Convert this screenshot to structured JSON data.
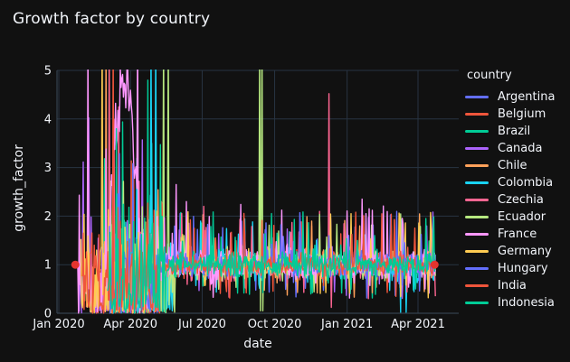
{
  "theme": {
    "background": "#111111",
    "text": "#f2f5fa",
    "grid": "#283442",
    "axis_line": "#3b4a5a",
    "marker_red": "#e3342e"
  },
  "chart_data": {
    "type": "line",
    "title": "Growth factor by country",
    "xlabel": "date",
    "ylabel": "growth_factor",
    "legend_title": "country",
    "legend_position": "right",
    "grid": true,
    "baseline": 1.0,
    "ylim": [
      0,
      5
    ],
    "y_ticks": [
      0,
      1,
      2,
      3,
      4,
      5
    ],
    "x_epoch": "2020-01-01",
    "x_tick_days": [
      0,
      91,
      182,
      274,
      366,
      456
    ],
    "x_tick_labels": [
      "Jan 2020",
      "Apr 2020",
      "Jul 2020",
      "Oct 2020",
      "Jan 2021",
      "Apr 2021"
    ],
    "end_day": 478,
    "markers": [
      {
        "day": 21,
        "value": 1.0
      },
      {
        "day": 477,
        "value": 1.0
      }
    ],
    "series": [
      {
        "name": "Argentina",
        "color": "#636efa",
        "start": 63,
        "wild_end": 130,
        "amp": 0.12,
        "seed": 11,
        "events": []
      },
      {
        "name": "Belgium",
        "color": "#ef553b",
        "start": 35,
        "wild_end": 125,
        "amp": 0.12,
        "seed": 22,
        "events": []
      },
      {
        "name": "Brazil",
        "color": "#00cc96",
        "start": 57,
        "wild_end": 135,
        "amp": 0.12,
        "seed": 33,
        "events": [
          [
            113,
            4.8
          ]
        ]
      },
      {
        "name": "Canada",
        "color": "#ab63fa",
        "start": 26,
        "wild_end": 120,
        "amp": 0.12,
        "seed": 44,
        "events": []
      },
      {
        "name": "Chile",
        "color": "#ffa15a",
        "start": 58,
        "wild_end": 140,
        "amp": 0.12,
        "seed": 55,
        "events": [
          [
            60,
            5.6
          ]
        ]
      },
      {
        "name": "Colombia",
        "color": "#19d3f3",
        "start": 66,
        "wild_end": 145,
        "amp": 0.15,
        "seed": 66,
        "events": [
          [
            117,
            5.6
          ],
          [
            120,
            0.05
          ],
          [
            123,
            5.6
          ],
          [
            434,
            0.02
          ],
          [
            441,
            0.02
          ]
        ]
      },
      {
        "name": "Czechia",
        "color": "#ff6692",
        "start": 61,
        "wild_end": 128,
        "amp": 0.15,
        "seed": 77,
        "events": [
          [
            64,
            5.6
          ],
          [
            184,
            2.2
          ],
          [
            343,
            4.52
          ],
          [
            346,
            0.12
          ]
        ]
      },
      {
        "name": "Ecuador",
        "color": "#b6e880",
        "start": 60,
        "wild_end": 150,
        "amp": 0.13,
        "seed": 88,
        "events": [
          [
            133,
            5.6
          ],
          [
            134,
            0.05
          ],
          [
            139,
            5.6
          ],
          [
            255,
            5.6
          ],
          [
            256,
            0.05
          ],
          [
            258,
            5.6
          ],
          [
            259,
            0.05
          ]
        ]
      },
      {
        "name": "France",
        "color": "#ff97ff",
        "start": 24,
        "wild_end": 135,
        "amp": 0.17,
        "seed": 99,
        "events": [
          [
            37,
            5.6
          ],
          [
            100,
            5.6
          ],
          [
            149,
            2.65
          ],
          [
            162,
            2.3
          ],
          [
            385,
            2.35
          ],
          [
            390,
            2.05
          ],
          [
            394,
            2.15
          ]
        ],
        "mound": {
          "start": 63,
          "end": 103,
          "peak": 5.4
        }
      },
      {
        "name": "Germany",
        "color": "#fecb52",
        "start": 28,
        "wild_end": 118,
        "amp": 0.07,
        "seed": 110,
        "events": [
          [
            55,
            5.6
          ],
          [
            473,
            1.72
          ]
        ]
      },
      {
        "name": "Hungary",
        "color": "#636efa",
        "start": 64,
        "wild_end": 126,
        "amp": 0.12,
        "seed": 121,
        "events": []
      },
      {
        "name": "India",
        "color": "#ef553b",
        "start": 30,
        "wild_end": 132,
        "amp": 0.1,
        "seed": 132,
        "events": [
          [
            69,
            5.6
          ]
        ]
      },
      {
        "name": "Indonesia",
        "color": "#00cc96",
        "start": 62,
        "wild_end": 138,
        "amp": 0.12,
        "seed": 143,
        "events": []
      }
    ]
  }
}
